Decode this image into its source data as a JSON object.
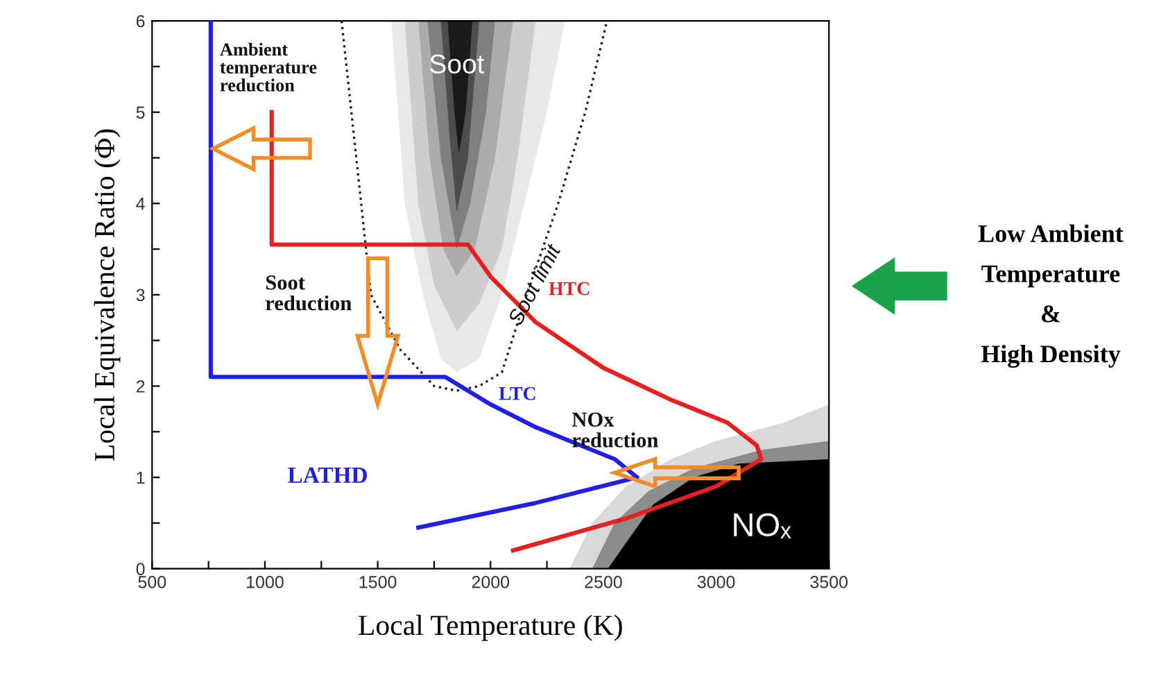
{
  "chart_data": {
    "type": "line",
    "xlabel": "Local Temperature (K)",
    "ylabel": "Local Equivalence Ratio (Φ)",
    "xlim": [
      500,
      3500
    ],
    "ylim": [
      0,
      6
    ],
    "xticks": [
      500,
      {
        "value": 750,
        "label": null
      },
      1000,
      {
        "value": 1250,
        "label": null
      },
      1500,
      {
        "value": 1750,
        "label": null
      },
      2000,
      {
        "value": 2250,
        "label": null
      },
      2500,
      {
        "value": 2750,
        "label": null
      },
      3000,
      {
        "value": 3250,
        "label": null
      },
      3500
    ],
    "yticks": [
      0,
      {
        "value": 0.5,
        "label": null
      },
      1,
      {
        "value": 1.5,
        "label": null
      },
      2,
      {
        "value": 2.5,
        "label": null
      },
      3,
      {
        "value": 3.5,
        "label": null
      },
      4,
      {
        "value": 4.5,
        "label": null
      },
      5,
      {
        "value": 5.5,
        "label": null
      },
      6
    ],
    "grid": false,
    "legend": false,
    "series": [
      {
        "type": "area",
        "color": "#e8e8e8",
        "x": [
          1560,
          1620,
          1700,
          1780,
          1850,
          1950,
          2050,
          2150,
          2250,
          2330
        ],
        "values": [
          6,
          4,
          3,
          2.3,
          2.15,
          2.3,
          3,
          4,
          5,
          6
        ]
      },
      {
        "type": "area",
        "color": "#cdcdcd",
        "x": [
          1620,
          1680,
          1750,
          1850,
          1950,
          2050,
          2120,
          2200
        ],
        "values": [
          6,
          4,
          3.1,
          2.6,
          2.9,
          3.5,
          4.5,
          6
        ]
      },
      {
        "type": "area",
        "color": "#ababab",
        "x": [
          1680,
          1730,
          1790,
          1850,
          1930,
          2020,
          2100
        ],
        "values": [
          6,
          4.5,
          3.5,
          3.2,
          3.5,
          4.5,
          6
        ]
      },
      {
        "type": "area",
        "color": "#7f7f7f",
        "x": [
          1720,
          1780,
          1850,
          1910,
          1980,
          2020
        ],
        "values": [
          6,
          4.5,
          3.5,
          4,
          5,
          6
        ]
      },
      {
        "type": "area",
        "color": "#4d4d4d",
        "x": [
          1780,
          1820,
          1850,
          1900,
          1950
        ],
        "values": [
          6,
          4.7,
          3.9,
          4.5,
          6
        ]
      },
      {
        "type": "area",
        "color": "#1a1a1a",
        "x": [
          1810,
          1840,
          1860,
          1890,
          1920
        ],
        "values": [
          6,
          5,
          4.55,
          5,
          6
        ]
      },
      {
        "type": "area",
        "color": "#d9d9d9",
        "x": [
          2350,
          2450,
          2600,
          2800,
          3000,
          3300,
          3500,
          3500
        ],
        "values": [
          0,
          0.5,
          0.9,
          1.2,
          1.4,
          1.6,
          1.8,
          0
        ]
      },
      {
        "type": "area",
        "color": "#8c8c8c",
        "x": [
          2450,
          2550,
          2700,
          2900,
          3200,
          3500,
          3500
        ],
        "values": [
          0,
          0.5,
          0.85,
          1.1,
          1.3,
          1.4,
          0
        ]
      },
      {
        "type": "area",
        "color": "#000000",
        "x": [
          2520,
          2620,
          2720,
          2900,
          3100,
          3500,
          3500
        ],
        "values": [
          0,
          0.35,
          0.7,
          1.0,
          1.15,
          1.2,
          0
        ]
      },
      {
        "name": "Soot limit",
        "color": "#222222",
        "line_style": "dotted",
        "x": [
          1340,
          1470,
          1600,
          1750,
          1850,
          1950,
          2050,
          2160,
          2300,
          2420,
          2516
        ],
        "values": [
          6,
          3,
          2.4,
          2.0,
          1.95,
          2.0,
          2.15,
          3,
          4,
          5,
          6
        ]
      },
      {
        "name": "LTC",
        "color": "#1f1fe6",
        "x": [
          760,
          760,
          1800,
          2000,
          2200,
          2400,
          2550,
          2650,
          2200,
          1680
        ],
        "values": [
          6,
          2.1,
          2.1,
          1.8,
          1.55,
          1.35,
          1.2,
          1.0,
          0.72,
          0.45
        ]
      },
      {
        "name": "HTC",
        "color": "#e61f1f",
        "x": [
          1030,
          1030,
          1900,
          2000,
          2200,
          2500,
          2800,
          3050,
          3180,
          3200,
          3000,
          2600,
          2100
        ],
        "values": [
          5.0,
          3.55,
          3.55,
          3.2,
          2.7,
          2.2,
          1.85,
          1.6,
          1.35,
          1.2,
          0.9,
          0.55,
          0.2
        ]
      }
    ],
    "annotations": [
      "Ambient\ntemperature\nreduction",
      "Soot\nreduction",
      "LATHD",
      "NOx\nreduction",
      "Soot",
      "NOₓ",
      "Low Ambient\nTemperature\n&\nHigh Density"
    ]
  }
}
